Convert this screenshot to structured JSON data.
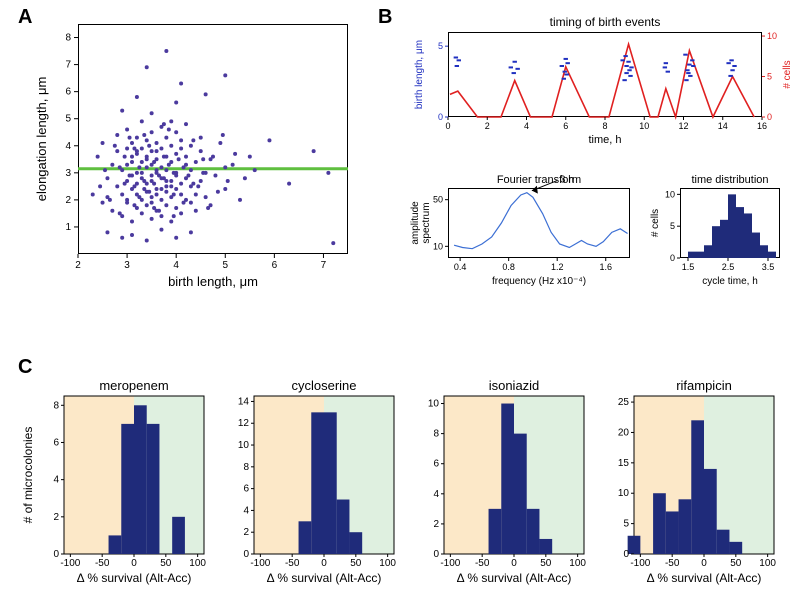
{
  "labels": {
    "A": "A",
    "B": "B",
    "C": "C"
  },
  "panelA": {
    "type": "scatter",
    "xlabel": "birth length, μm",
    "ylabel": "elongation length, μm",
    "xlim": [
      2,
      7.5
    ],
    "ylim": [
      0,
      8.5
    ],
    "xticks": [
      2,
      3,
      4,
      5,
      6,
      7
    ],
    "yticks": [
      1,
      2,
      3,
      4,
      5,
      6,
      7,
      8
    ],
    "fit_y": 3.15,
    "fit_color": "#5fbf3f",
    "point_color": "#4b3a9e",
    "point_radius": 2.0,
    "background": "#ffffff",
    "label_fontsize": 13,
    "tick_fontsize": 10,
    "points": [
      [
        2.3,
        2.2
      ],
      [
        2.4,
        3.6
      ],
      [
        2.5,
        1.9
      ],
      [
        2.5,
        4.1
      ],
      [
        2.6,
        2.8
      ],
      [
        2.6,
        2.1
      ],
      [
        2.7,
        3.3
      ],
      [
        2.7,
        1.6
      ],
      [
        2.8,
        4.4
      ],
      [
        2.8,
        2.5
      ],
      [
        2.8,
        3.8
      ],
      [
        2.9,
        2.2
      ],
      [
        2.9,
        3.1
      ],
      [
        2.9,
        1.4
      ],
      [
        3.0,
        3.9
      ],
      [
        3.0,
        2.7
      ],
      [
        3.0,
        4.6
      ],
      [
        3.0,
        1.9
      ],
      [
        3.0,
        3.3
      ],
      [
        3.1,
        2.4
      ],
      [
        3.1,
        3.6
      ],
      [
        3.1,
        1.2
      ],
      [
        3.1,
        2.9
      ],
      [
        3.1,
        4.1
      ],
      [
        3.2,
        3.0
      ],
      [
        3.2,
        2.2
      ],
      [
        3.2,
        3.8
      ],
      [
        3.2,
        1.7
      ],
      [
        3.2,
        4.3
      ],
      [
        3.2,
        2.6
      ],
      [
        3.3,
        3.4
      ],
      [
        3.3,
        2.0
      ],
      [
        3.3,
        4.9
      ],
      [
        3.3,
        1.5
      ],
      [
        3.3,
        2.8
      ],
      [
        3.3,
        3.9
      ],
      [
        3.4,
        2.3
      ],
      [
        3.4,
        3.2
      ],
      [
        3.4,
        4.2
      ],
      [
        3.4,
        1.8
      ],
      [
        3.4,
        2.6
      ],
      [
        3.4,
        3.6
      ],
      [
        3.5,
        1.3
      ],
      [
        3.5,
        2.9
      ],
      [
        3.5,
        4.5
      ],
      [
        3.5,
        2.1
      ],
      [
        3.5,
        3.3
      ],
      [
        3.5,
        1.9
      ],
      [
        3.5,
        2.7
      ],
      [
        3.6,
        3.8
      ],
      [
        3.6,
        2.4
      ],
      [
        3.6,
        4.1
      ],
      [
        3.6,
        1.6
      ],
      [
        3.6,
        3.0
      ],
      [
        3.6,
        2.2
      ],
      [
        3.6,
        3.5
      ],
      [
        3.7,
        2.8
      ],
      [
        3.7,
        4.7
      ],
      [
        3.7,
        1.4
      ],
      [
        3.7,
        3.2
      ],
      [
        3.7,
        2.0
      ],
      [
        3.7,
        3.9
      ],
      [
        3.8,
        2.5
      ],
      [
        3.8,
        1.8
      ],
      [
        3.8,
        4.3
      ],
      [
        3.8,
        3.1
      ],
      [
        3.8,
        2.3
      ],
      [
        3.8,
        3.6
      ],
      [
        3.9,
        4.9
      ],
      [
        3.9,
        1.2
      ],
      [
        3.9,
        2.7
      ],
      [
        3.9,
        3.4
      ],
      [
        3.9,
        2.1
      ],
      [
        3.9,
        4.0
      ],
      [
        4.0,
        2.9
      ],
      [
        4.0,
        1.7
      ],
      [
        4.0,
        3.7
      ],
      [
        4.0,
        2.4
      ],
      [
        4.0,
        4.5
      ],
      [
        4.0,
        3.0
      ],
      [
        4.1,
        2.2
      ],
      [
        4.1,
        3.9
      ],
      [
        4.1,
        1.5
      ],
      [
        4.1,
        2.6
      ],
      [
        4.1,
        4.2
      ],
      [
        4.2,
        3.3
      ],
      [
        4.2,
        2.0
      ],
      [
        4.2,
        3.6
      ],
      [
        4.2,
        2.8
      ],
      [
        4.2,
        4.8
      ],
      [
        4.3,
        1.9
      ],
      [
        4.3,
        3.1
      ],
      [
        4.3,
        2.5
      ],
      [
        4.3,
        4.0
      ],
      [
        4.4,
        3.4
      ],
      [
        4.4,
        2.2
      ],
      [
        4.4,
        1.6
      ],
      [
        4.5,
        3.8
      ],
      [
        4.5,
        2.7
      ],
      [
        4.5,
        4.3
      ],
      [
        4.6,
        3.0
      ],
      [
        4.6,
        2.1
      ],
      [
        4.7,
        3.5
      ],
      [
        4.7,
        1.8
      ],
      [
        4.8,
        2.9
      ],
      [
        4.9,
        4.1
      ],
      [
        5.0,
        3.2
      ],
      [
        5.0,
        2.4
      ],
      [
        5.2,
        3.7
      ],
      [
        5.4,
        2.8
      ],
      [
        2.9,
        5.3
      ],
      [
        3.2,
        5.8
      ],
      [
        3.4,
        6.9
      ],
      [
        3.5,
        5.2
      ],
      [
        3.8,
        7.5
      ],
      [
        4.0,
        5.6
      ],
      [
        4.1,
        6.3
      ],
      [
        4.6,
        5.9
      ],
      [
        5.0,
        6.6
      ],
      [
        2.6,
        0.8
      ],
      [
        2.9,
        0.6
      ],
      [
        3.1,
        0.7
      ],
      [
        3.4,
        0.5
      ],
      [
        3.7,
        0.9
      ],
      [
        4.0,
        0.6
      ],
      [
        4.3,
        0.8
      ],
      [
        5.6,
        3.1
      ],
      [
        5.9,
        4.2
      ],
      [
        6.3,
        2.6
      ],
      [
        6.8,
        3.8
      ],
      [
        7.1,
        3.0
      ],
      [
        7.2,
        0.4
      ],
      [
        3.0,
        2.0
      ],
      [
        3.05,
        2.9
      ],
      [
        3.1,
        3.4
      ],
      [
        3.15,
        2.5
      ],
      [
        3.2,
        3.7
      ],
      [
        3.25,
        2.1
      ],
      [
        3.3,
        3.0
      ],
      [
        3.35,
        2.7
      ],
      [
        3.4,
        3.5
      ],
      [
        3.45,
        2.3
      ],
      [
        3.5,
        3.8
      ],
      [
        3.55,
        2.6
      ],
      [
        3.6,
        3.1
      ],
      [
        3.65,
        2.9
      ],
      [
        3.7,
        2.4
      ],
      [
        3.75,
        3.6
      ],
      [
        3.8,
        2.7
      ],
      [
        3.85,
        3.3
      ],
      [
        3.9,
        2.5
      ],
      [
        3.95,
        3.0
      ],
      [
        2.85,
        3.2
      ],
      [
        2.95,
        2.6
      ],
      [
        3.15,
        3.9
      ],
      [
        3.35,
        4.4
      ],
      [
        3.55,
        1.7
      ],
      [
        3.75,
        4.8
      ],
      [
        3.95,
        1.4
      ],
      [
        4.15,
        3.2
      ],
      [
        4.35,
        2.6
      ],
      [
        4.55,
        3.5
      ],
      [
        2.45,
        2.5
      ],
      [
        2.55,
        3.1
      ],
      [
        2.65,
        2.0
      ],
      [
        2.75,
        4.0
      ],
      [
        2.85,
        1.5
      ],
      [
        2.95,
        3.6
      ],
      [
        3.05,
        4.3
      ],
      [
        3.15,
        1.8
      ],
      [
        3.25,
        3.2
      ],
      [
        3.35,
        2.4
      ],
      [
        3.45,
        4.0
      ],
      [
        3.55,
        3.4
      ],
      [
        3.65,
        1.6
      ],
      [
        3.75,
        2.8
      ],
      [
        3.85,
        4.6
      ],
      [
        3.95,
        2.2
      ],
      [
        4.05,
        3.5
      ],
      [
        4.15,
        1.9
      ],
      [
        4.25,
        2.9
      ],
      [
        4.35,
        4.2
      ],
      [
        4.45,
        2.5
      ],
      [
        4.55,
        3.0
      ],
      [
        4.65,
        1.7
      ],
      [
        4.75,
        3.6
      ],
      [
        4.85,
        2.3
      ],
      [
        4.95,
        4.4
      ],
      [
        5.05,
        2.7
      ],
      [
        5.15,
        3.3
      ],
      [
        5.3,
        2.0
      ],
      [
        5.5,
        3.6
      ]
    ]
  },
  "panelB": {
    "timing": {
      "title": "timing of birth events",
      "xlabel": "time, h",
      "ylabel_left": "birth length, μm",
      "ylabel_right": "# cells",
      "left_color": "#2030c0",
      "right_color": "#e02020",
      "xlim": [
        0,
        16
      ],
      "ylim_left": [
        0,
        6
      ],
      "ylim_right": [
        0,
        10.5
      ],
      "xticks": [
        0,
        2,
        4,
        6,
        8,
        10,
        12,
        14,
        16
      ],
      "yticks_left": [
        0,
        5
      ],
      "yticks_right": [
        0,
        5,
        10
      ],
      "line_color": "#e02020",
      "point_color": "#2030c0",
      "red_vertices": [
        [
          0.1,
          2.8
        ],
        [
          0.5,
          3.2
        ],
        [
          1.5,
          0
        ],
        [
          2.7,
          0
        ],
        [
          3.4,
          4.5
        ],
        [
          4.2,
          0
        ],
        [
          5.3,
          0
        ],
        [
          6.0,
          6.2
        ],
        [
          7.2,
          0
        ],
        [
          8.2,
          0
        ],
        [
          9.2,
          9.0
        ],
        [
          10.3,
          0
        ],
        [
          10.7,
          0
        ],
        [
          11.1,
          3.5
        ],
        [
          11.6,
          0
        ],
        [
          12.3,
          8.2
        ],
        [
          13.5,
          0
        ],
        [
          14.5,
          5.0
        ],
        [
          15.6,
          0
        ]
      ],
      "blue_points": [
        [
          0.4,
          4.2
        ],
        [
          0.55,
          4.0
        ],
        [
          0.45,
          3.6
        ],
        [
          3.2,
          3.5
        ],
        [
          3.4,
          3.9
        ],
        [
          3.55,
          3.4
        ],
        [
          3.35,
          3.1
        ],
        [
          5.8,
          3.6
        ],
        [
          6.0,
          4.1
        ],
        [
          5.95,
          3.2
        ],
        [
          6.1,
          3.8
        ],
        [
          6.05,
          3.0
        ],
        [
          5.9,
          2.7
        ],
        [
          8.9,
          4.0
        ],
        [
          9.1,
          3.6
        ],
        [
          9.25,
          3.3
        ],
        [
          9.05,
          4.3
        ],
        [
          9.3,
          2.9
        ],
        [
          9.2,
          3.9
        ],
        [
          9.0,
          2.6
        ],
        [
          9.35,
          3.5
        ],
        [
          9.1,
          3.1
        ],
        [
          11.05,
          3.5
        ],
        [
          11.2,
          3.2
        ],
        [
          11.1,
          3.8
        ],
        [
          12.1,
          4.4
        ],
        [
          12.3,
          3.7
        ],
        [
          12.2,
          3.3
        ],
        [
          12.45,
          4.0
        ],
        [
          12.35,
          2.9
        ],
        [
          12.5,
          3.6
        ],
        [
          12.25,
          3.1
        ],
        [
          12.15,
          2.6
        ],
        [
          14.3,
          3.8
        ],
        [
          14.5,
          3.3
        ],
        [
          14.45,
          4.0
        ],
        [
          14.6,
          3.6
        ],
        [
          14.4,
          2.9
        ]
      ]
    },
    "fourier": {
      "title": "Fourier transform",
      "xlabel": "frequency (Hz x10⁻⁴)",
      "ylabel": "amplitude\nspectrum",
      "annotation": "3 h",
      "xlim": [
        0.3,
        1.8
      ],
      "ylim": [
        0,
        60
      ],
      "xticks": [
        0.4,
        0.8,
        1.2,
        1.6
      ],
      "yticks": [
        10,
        50
      ],
      "line_color": "#3c6fd4",
      "curve": [
        [
          0.35,
          11
        ],
        [
          0.42,
          9
        ],
        [
          0.5,
          8
        ],
        [
          0.58,
          12
        ],
        [
          0.66,
          18
        ],
        [
          0.74,
          30
        ],
        [
          0.82,
          45
        ],
        [
          0.9,
          54
        ],
        [
          0.95,
          56
        ],
        [
          1.0,
          52
        ],
        [
          1.08,
          38
        ],
        [
          1.15,
          22
        ],
        [
          1.22,
          12
        ],
        [
          1.3,
          9
        ],
        [
          1.35,
          12
        ],
        [
          1.4,
          15
        ],
        [
          1.45,
          12
        ],
        [
          1.52,
          10
        ],
        [
          1.58,
          14
        ],
        [
          1.65,
          22
        ],
        [
          1.72,
          25
        ],
        [
          1.78,
          21
        ]
      ]
    },
    "timedist": {
      "title": "time distribution",
      "xlabel": "cycle time, h",
      "ylabel": "# cells",
      "xlim": [
        1.3,
        3.8
      ],
      "ylim": [
        0,
        11
      ],
      "xticks": [
        1.5,
        2.5,
        3.5
      ],
      "yticks": [
        0,
        5,
        10
      ],
      "bar_color": "#1f2b7a",
      "bins": [
        [
          1.6,
          1
        ],
        [
          1.8,
          1
        ],
        [
          2.0,
          2
        ],
        [
          2.2,
          5
        ],
        [
          2.4,
          6
        ],
        [
          2.6,
          10
        ],
        [
          2.8,
          8
        ],
        [
          3.0,
          7
        ],
        [
          3.2,
          4
        ],
        [
          3.4,
          2
        ],
        [
          3.6,
          1
        ]
      ],
      "bin_width": 0.2
    }
  },
  "panelC": {
    "ylabel": "# of microcolonies",
    "xlabel": "Δ % survival (Alt-Acc)",
    "xlim": [
      -110,
      110
    ],
    "xticks": [
      -100,
      -50,
      0,
      50,
      100
    ],
    "bar_color": "#1f2b7a",
    "bg_left": "#fce8c8",
    "bg_right": "#dff0e0",
    "bin_width": 20,
    "label_fontsize": 12,
    "tick_fontsize": 10,
    "plots": [
      {
        "title": "meropenem",
        "ylim": [
          0,
          8.5
        ],
        "yticks": [
          0,
          2,
          4,
          6,
          8
        ],
        "bars": [
          [
            -30,
            1
          ],
          [
            -10,
            7
          ],
          [
            10,
            8
          ],
          [
            30,
            7
          ],
          [
            70,
            2
          ]
        ]
      },
      {
        "title": "cycloserine",
        "ylim": [
          0,
          14.5
        ],
        "yticks": [
          0,
          2,
          4,
          6,
          8,
          10,
          12,
          14
        ],
        "bars": [
          [
            -30,
            3
          ],
          [
            -10,
            13
          ],
          [
            10,
            13
          ],
          [
            30,
            5
          ],
          [
            50,
            2
          ]
        ]
      },
      {
        "title": "isoniazid",
        "ylim": [
          0,
          10.5
        ],
        "yticks": [
          0,
          2,
          4,
          6,
          8,
          10
        ],
        "bars": [
          [
            -30,
            3
          ],
          [
            -10,
            10
          ],
          [
            10,
            8
          ],
          [
            30,
            3
          ],
          [
            50,
            1
          ]
        ]
      },
      {
        "title": "rifampicin",
        "ylim": [
          0,
          26
        ],
        "yticks": [
          0,
          5,
          10,
          15,
          20,
          25
        ],
        "bars": [
          [
            -110,
            3
          ],
          [
            -70,
            10
          ],
          [
            -50,
            7
          ],
          [
            -30,
            9
          ],
          [
            -10,
            22
          ],
          [
            10,
            14
          ],
          [
            30,
            4
          ],
          [
            50,
            2
          ]
        ]
      }
    ]
  }
}
